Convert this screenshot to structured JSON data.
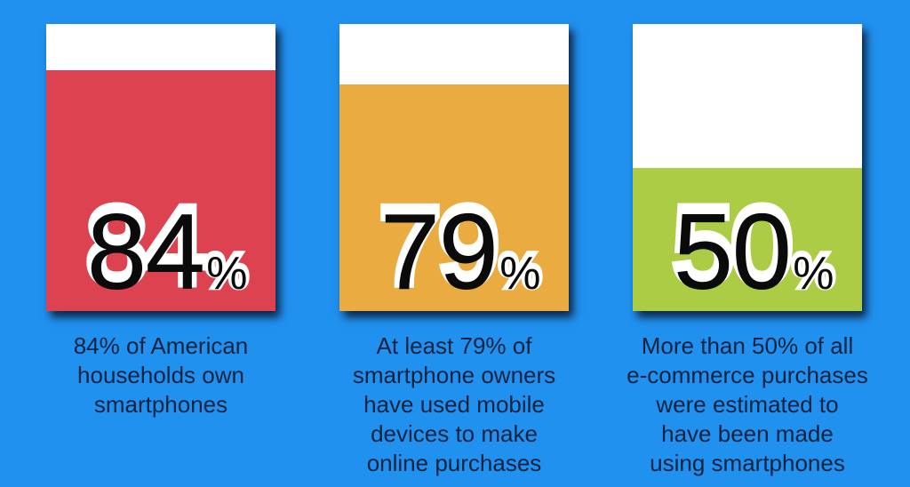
{
  "background_color": "#2191ef",
  "cards": [
    {
      "value": "84",
      "unit": "%",
      "fill_color": "#dc4250",
      "fill_height": "84%",
      "caption": "84% of American\nhouseholds own\nsmartphones"
    },
    {
      "value": "79",
      "unit": "%",
      "fill_color": "#eaac40",
      "fill_height": "79%",
      "caption": "At least 79% of\nsmartphone owners\nhave used mobile\ndevices to make\nonline purchases"
    },
    {
      "value": "50",
      "unit": "%",
      "fill_color": "#abcc44",
      "fill_height": "50%",
      "caption": "More than 50% of all\ne-commerce purchases\nwere estimated to\nhave been made\nusing smartphones"
    }
  ],
  "chart_data": {
    "type": "bar",
    "title": "",
    "categories": [
      "84% of American households own smartphones",
      "At least 79% of smartphone owners have used mobile devices to make online purchases",
      "More than 50% of all e-commerce purchases were estimated to have been made using smartphones"
    ],
    "values": [
      84,
      79,
      50
    ],
    "unit": "%",
    "ylim": [
      0,
      100
    ],
    "grid": false,
    "legend": false,
    "colors": [
      "#dc4250",
      "#eaac40",
      "#abcc44"
    ],
    "background": "#2191ef",
    "annotations": [
      "84%",
      "79%",
      "50%"
    ]
  }
}
